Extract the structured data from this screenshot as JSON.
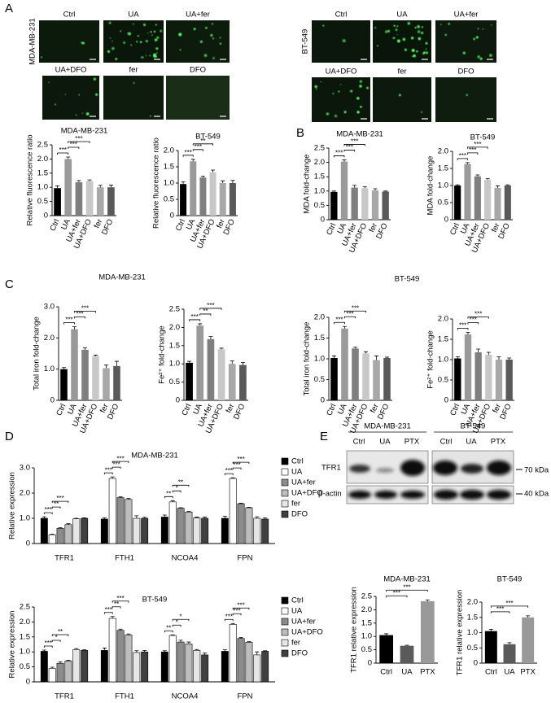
{
  "panel_labels": [
    "A",
    "B",
    "C",
    "D",
    "E"
  ],
  "micrographs": [
    {
      "cell_line": "MDA-MB-231",
      "labels": [
        "Ctrl",
        "UA",
        "UA+fer",
        "UA+DFO",
        "fer",
        "DFO"
      ]
    },
    {
      "cell_line": "BT-549",
      "labels": [
        "Ctrl",
        "UA",
        "UA+fer",
        "UA+DFO",
        "fer",
        "DFO"
      ]
    }
  ],
  "blot": {
    "cell_lines": [
      "MDA-MB-231",
      "BT-549"
    ],
    "lanes": [
      "Ctrl",
      "UA",
      "PTX",
      "Ctrl",
      "UA",
      "PTX"
    ],
    "proteins": [
      "TFR1",
      "β-actin"
    ],
    "markers": [
      "70 kDa",
      "40 kDa"
    ]
  },
  "chart_data": [
    {
      "type": "bar",
      "title": "MDA-MB-231",
      "y_label": "Relative fluorescence ratio",
      "categories": [
        "Ctrl",
        "UA",
        "UA+fer",
        "UA+DFO",
        "fer",
        "DFO"
      ],
      "values": [
        0.97,
        2.0,
        1.18,
        1.22,
        1.0,
        1.0
      ],
      "errors": [
        0.08,
        0.07,
        0.06,
        0.04,
        0.07,
        0.08
      ],
      "colors": [
        "#000000",
        "#9a9a9a",
        "#7f7f7f",
        "#c8c8c8",
        "#a8a8a8",
        "#5a5a5a"
      ],
      "ylim": [
        0,
        2.5
      ],
      "yticks": [
        0,
        0.5,
        {
          "value": 1,
          "label": "1.0"
        },
        1.5,
        {
          "value": 2,
          "label": "2.0"
        },
        2.5
      ],
      "significance": [
        {
          "between": [
            0,
            1
          ],
          "label": "***"
        },
        {
          "between": [
            1,
            2
          ],
          "label": "***"
        },
        {
          "between": [
            1,
            3
          ],
          "label": "***"
        }
      ]
    },
    {
      "type": "bar",
      "title": "BT-549",
      "y_label": "Relative fluorescence ratio",
      "categories": [
        "Ctrl",
        "UA",
        "UA+fer",
        "UA+DFO",
        "fer",
        "DFO"
      ],
      "values": [
        0.97,
        1.67,
        1.17,
        1.33,
        1.0,
        1.0
      ],
      "errors": [
        0.07,
        0.06,
        0.04,
        0.07,
        0.07,
        0.08
      ],
      "colors": [
        "#000000",
        "#9a9a9a",
        "#7f7f7f",
        "#c8c8c8",
        "#a8a8a8",
        "#5a5a5a"
      ],
      "ylim": [
        0,
        2
      ],
      "yticks": [
        0,
        0.5,
        {
          "value": 1,
          "label": "1.0"
        },
        1.5,
        {
          "value": 2,
          "label": "2.0"
        }
      ],
      "significance": [
        {
          "between": [
            0,
            1
          ],
          "label": "***"
        },
        {
          "between": [
            1,
            2
          ],
          "label": "***"
        },
        {
          "between": [
            1,
            3
          ],
          "label": "**"
        }
      ]
    },
    {
      "type": "bar",
      "title": "MDA-MB-231",
      "y_label": "MDA fold-change",
      "categories": [
        "Ctrl",
        "UA",
        "UA+fer",
        "UA+DFO",
        "fer",
        "DFO"
      ],
      "values": [
        0.97,
        2.03,
        1.12,
        1.1,
        1.02,
        0.98
      ],
      "errors": [
        0.03,
        0.06,
        0.08,
        0.05,
        0.06,
        0.02
      ],
      "colors": [
        "#000000",
        "#9a9a9a",
        "#7f7f7f",
        "#c8c8c8",
        "#a8a8a8",
        "#5a5a5a"
      ],
      "ylim": [
        0,
        2.5
      ],
      "yticks": [
        0,
        0.5,
        {
          "value": 1,
          "label": "1.0"
        },
        1.5,
        {
          "value": 2,
          "label": "2.0"
        },
        2.5
      ],
      "significance": [
        {
          "between": [
            0,
            1
          ],
          "label": "***"
        },
        {
          "between": [
            1,
            2
          ],
          "label": "***"
        },
        {
          "between": [
            1,
            3
          ],
          "label": "***"
        }
      ]
    },
    {
      "type": "bar",
      "title": "BT-549",
      "y_label": "MDA fold-change",
      "categories": [
        "Ctrl",
        "UA",
        "UA+fer",
        "UA+DFO",
        "fer",
        "DFO"
      ],
      "values": [
        1.0,
        1.63,
        1.27,
        1.17,
        0.93,
        1.0
      ],
      "errors": [
        0.02,
        0.04,
        0.04,
        0.03,
        0.06,
        0.02
      ],
      "colors": [
        "#000000",
        "#9a9a9a",
        "#7f7f7f",
        "#c8c8c8",
        "#a8a8a8",
        "#5a5a5a"
      ],
      "ylim": [
        0,
        2
      ],
      "yticks": [
        0,
        0.5,
        {
          "value": 1,
          "label": "1.0"
        },
        1.5,
        {
          "value": 2,
          "label": "2.0"
        }
      ],
      "significance": [
        {
          "between": [
            0,
            1
          ],
          "label": "***"
        },
        {
          "between": [
            1,
            2
          ],
          "label": "***"
        },
        {
          "between": [
            1,
            3
          ],
          "label": "***"
        }
      ]
    },
    {
      "type": "bar",
      "title": "MDA-MB-231",
      "y_label": "Total iron fold-change",
      "categories": [
        "Ctrl",
        "UA",
        "UA+fer",
        "UA+DFO",
        "fer",
        "DFO"
      ],
      "values": [
        1.0,
        2.28,
        1.62,
        1.42,
        1.03,
        1.1
      ],
      "errors": [
        0.05,
        0.08,
        0.06,
        0.03,
        0.1,
        0.15
      ],
      "colors": [
        "#000000",
        "#9a9a9a",
        "#7f7f7f",
        "#c8c8c8",
        "#a8a8a8",
        "#5a5a5a"
      ],
      "ylim": [
        0,
        3
      ],
      "yticks": [
        0,
        {
          "value": 1,
          "label": "1.0"
        },
        {
          "value": 2,
          "label": "2.0"
        },
        {
          "value": 3,
          "label": "3.0"
        }
      ],
      "significance": [
        {
          "between": [
            0,
            1
          ],
          "label": "***"
        },
        {
          "between": [
            1,
            2
          ],
          "label": "***"
        },
        {
          "between": [
            1,
            3
          ],
          "label": "***"
        }
      ]
    },
    {
      "type": "bar",
      "y_label": "Fe²⁺ fold-change",
      "categories": [
        "Ctrl",
        "UA",
        "UA+fer",
        "UA+DFO",
        "fer",
        "DFO"
      ],
      "values": [
        1.03,
        2.05,
        1.68,
        1.4,
        1.0,
        0.97
      ],
      "errors": [
        0.04,
        0.05,
        0.07,
        0.03,
        0.08,
        0.07
      ],
      "colors": [
        "#000000",
        "#9a9a9a",
        "#7f7f7f",
        "#c8c8c8",
        "#a8a8a8",
        "#5a5a5a"
      ],
      "ylim": [
        0,
        2.5
      ],
      "yticks": [
        0,
        0.5,
        {
          "value": 1,
          "label": "1.0"
        },
        1.5,
        {
          "value": 2,
          "label": "2.0"
        },
        2.5
      ],
      "significance": [
        {
          "between": [
            0,
            1
          ],
          "label": "***"
        },
        {
          "between": [
            1,
            2
          ],
          "label": "**"
        },
        {
          "between": [
            1,
            3
          ],
          "label": "***"
        }
      ]
    },
    {
      "type": "bar",
      "title": "BT-549",
      "y_label": "Total iron fold-change",
      "categories": [
        "Ctrl",
        "UA",
        "UA+fer",
        "UA+DFO",
        "fer",
        "DFO"
      ],
      "values": [
        1.02,
        1.73,
        1.25,
        1.13,
        0.97,
        1.02
      ],
      "errors": [
        0.05,
        0.05,
        0.03,
        0.04,
        0.1,
        0.02
      ],
      "colors": [
        "#000000",
        "#9a9a9a",
        "#7f7f7f",
        "#c8c8c8",
        "#a8a8a8",
        "#5a5a5a"
      ],
      "ylim": [
        0,
        2
      ],
      "yticks": [
        0,
        0.5,
        {
          "value": 1,
          "label": "1.0"
        },
        1.5,
        {
          "value": 2,
          "label": "2.0"
        }
      ],
      "significance": [
        {
          "between": [
            0,
            1
          ],
          "label": "***"
        },
        {
          "between": [
            1,
            2
          ],
          "label": "***"
        },
        {
          "between": [
            1,
            3
          ],
          "label": "***"
        }
      ]
    },
    {
      "type": "bar",
      "y_label": "Fe²⁺ fold-change",
      "categories": [
        "Ctrl",
        "UA",
        "UA+fer",
        "UA+DFO",
        "fer",
        "DFO"
      ],
      "values": [
        1.03,
        1.62,
        1.18,
        1.12,
        1.0,
        1.0
      ],
      "errors": [
        0.04,
        0.05,
        0.08,
        0.06,
        0.07,
        0.04
      ],
      "colors": [
        "#000000",
        "#9a9a9a",
        "#7f7f7f",
        "#c8c8c8",
        "#a8a8a8",
        "#5a5a5a"
      ],
      "ylim": [
        0,
        2
      ],
      "yticks": [
        0,
        0.5,
        {
          "value": 1,
          "label": "1.0"
        },
        1.5,
        {
          "value": 2,
          "label": "2.0"
        }
      ],
      "significance": [
        {
          "between": [
            0,
            1
          ],
          "label": "***"
        },
        {
          "between": [
            1,
            2
          ],
          "label": "***"
        },
        {
          "between": [
            1,
            3
          ],
          "label": "***"
        }
      ]
    },
    {
      "type": "grouped_bar",
      "title": "MDA-MB-231",
      "y_label": "Relative expression",
      "categories": [
        "TFR1",
        "FTH1",
        "NCOA4",
        "FPN"
      ],
      "ylim": [
        0,
        3
      ],
      "yticks": [
        0,
        {
          "value": 1,
          "label": "1.0"
        },
        {
          "value": 2,
          "label": "2.0"
        },
        {
          "value": 3,
          "label": "3.0"
        }
      ],
      "series": [
        {
          "name": "Ctrl",
          "color": "#000000",
          "values": [
            1.0,
            0.97,
            1.05,
            1.0
          ],
          "errors": [
            0.06,
            0.05,
            0.08,
            0.08
          ]
        },
        {
          "name": "UA",
          "color": "#ffffff",
          "values": [
            0.35,
            2.58,
            1.65,
            2.58
          ],
          "errors": [
            0.02,
            0.06,
            0.05,
            0.03
          ]
        },
        {
          "name": "UA+fer",
          "color": "#8c8c8c",
          "values": [
            0.6,
            1.82,
            1.4,
            1.58
          ],
          "errors": [
            0.03,
            0.03,
            0.02,
            0.02
          ]
        },
        {
          "name": "UA+DFO",
          "color": "#bdbdbd",
          "values": [
            0.75,
            1.75,
            1.25,
            1.42
          ],
          "errors": [
            0.04,
            0.04,
            0.02,
            0.02
          ]
        },
        {
          "name": "fer",
          "color": "#e6e6e6",
          "values": [
            0.98,
            1.0,
            1.02,
            1.0
          ],
          "errors": [
            0.02,
            0.1,
            0.03,
            0.06
          ]
        },
        {
          "name": "DFO",
          "color": "#404040",
          "values": [
            1.0,
            1.0,
            1.0,
            0.97
          ],
          "errors": [
            0.02,
            0.04,
            0.05,
            0.05
          ]
        }
      ],
      "significance": [
        {
          "category": 0,
          "between": [
            0,
            1
          ],
          "label": "***"
        },
        {
          "category": 0,
          "between": [
            1,
            2
          ],
          "label": "**"
        },
        {
          "category": 0,
          "between": [
            1,
            3
          ],
          "label": "***"
        },
        {
          "category": 1,
          "between": [
            0,
            1
          ],
          "label": "***"
        },
        {
          "category": 1,
          "between": [
            1,
            2
          ],
          "label": "***"
        },
        {
          "category": 1,
          "between": [
            1,
            3
          ],
          "label": "***"
        },
        {
          "category": 2,
          "between": [
            0,
            1
          ],
          "label": "**"
        },
        {
          "category": 2,
          "between": [
            1,
            2
          ],
          "label": "*"
        },
        {
          "category": 2,
          "between": [
            1,
            3
          ],
          "label": "**"
        },
        {
          "category": 3,
          "between": [
            0,
            1
          ],
          "label": "***"
        },
        {
          "category": 3,
          "between": [
            1,
            2
          ],
          "label": "***"
        },
        {
          "category": 3,
          "between": [
            1,
            3
          ],
          "label": "***"
        }
      ]
    },
    {
      "type": "grouped_bar",
      "title": "BT-549",
      "y_label": "Relative expression",
      "categories": [
        "TFR1",
        "FTH1",
        "NCOA4",
        "FPN"
      ],
      "ylim": [
        0,
        2.5
      ],
      "yticks": [
        0,
        0.5,
        {
          "value": 1,
          "label": "1.0"
        },
        1.5,
        {
          "value": 2,
          "label": "2.0"
        },
        2.5
      ],
      "series": [
        {
          "name": "Ctrl",
          "color": "#000000",
          "values": [
            1.02,
            1.05,
            1.0,
            1.02
          ],
          "errors": [
            0.04,
            0.08,
            0.04,
            0.05
          ]
        },
        {
          "name": "UA",
          "color": "#ffffff",
          "values": [
            0.45,
            2.12,
            1.55,
            1.92
          ],
          "errors": [
            0.04,
            0.06,
            0.02,
            0.03
          ]
        },
        {
          "name": "UA+fer",
          "color": "#8c8c8c",
          "values": [
            0.62,
            1.72,
            1.33,
            1.45
          ],
          "errors": [
            0.05,
            0.04,
            0.06,
            0.03
          ]
        },
        {
          "name": "UA+DFO",
          "color": "#bdbdbd",
          "values": [
            0.7,
            1.57,
            1.27,
            1.32
          ],
          "errors": [
            0.02,
            0.03,
            0.06,
            0.02
          ]
        },
        {
          "name": "fer",
          "color": "#e6e6e6",
          "values": [
            1.08,
            0.98,
            1.05,
            0.9
          ],
          "errors": [
            0.03,
            0.06,
            0.03,
            0.1
          ]
        },
        {
          "name": "DFO",
          "color": "#404040",
          "values": [
            1.05,
            1.0,
            0.9,
            1.02
          ],
          "errors": [
            0.02,
            0.05,
            0.06,
            0.02
          ]
        }
      ],
      "significance": [
        {
          "category": 0,
          "between": [
            0,
            1
          ],
          "label": "***"
        },
        {
          "category": 0,
          "between": [
            1,
            2
          ],
          "label": "*"
        },
        {
          "category": 0,
          "between": [
            1,
            3
          ],
          "label": "**"
        },
        {
          "category": 1,
          "between": [
            0,
            1
          ],
          "label": "***"
        },
        {
          "category": 1,
          "between": [
            1,
            2
          ],
          "label": "**"
        },
        {
          "category": 1,
          "between": [
            1,
            3
          ],
          "label": "***"
        },
        {
          "category": 2,
          "between": [
            0,
            1
          ],
          "label": "**"
        },
        {
          "category": 2,
          "between": [
            1,
            2
          ],
          "label": "*"
        },
        {
          "category": 2,
          "between": [
            1,
            3
          ],
          "label": "*"
        },
        {
          "category": 3,
          "between": [
            0,
            1
          ],
          "label": "***"
        },
        {
          "category": 3,
          "between": [
            1,
            2
          ],
          "label": "***"
        },
        {
          "category": 3,
          "between": [
            1,
            3
          ],
          "label": "***"
        }
      ]
    },
    {
      "type": "bar",
      "title": "MDA-MB-231",
      "y_label": "TFR1 relative expression",
      "categories": [
        "Ctrl",
        "UA",
        "PTX"
      ],
      "values": [
        1.05,
        0.65,
        2.32
      ],
      "errors": [
        0.05,
        0.02,
        0.05
      ],
      "colors": [
        "#000000",
        "#5a5a5a",
        "#999999"
      ],
      "ylim": [
        0,
        2.5
      ],
      "yticks": [
        0,
        0.5,
        {
          "value": 1,
          "label": "1.0"
        },
        1.5,
        {
          "value": 2,
          "label": "2.0"
        },
        2.5
      ],
      "significance": [
        {
          "between": [
            0,
            1
          ],
          "label": "***"
        },
        {
          "between": [
            0,
            2
          ],
          "label": "***"
        }
      ]
    },
    {
      "type": "bar",
      "title": "BT-549",
      "y_label": "TFR1 relative expression",
      "categories": [
        "Ctrl",
        "UA",
        "PTX"
      ],
      "values": [
        1.05,
        0.62,
        1.5
      ],
      "errors": [
        0.06,
        0.05,
        0.05
      ],
      "colors": [
        "#000000",
        "#5a5a5a",
        "#999999"
      ],
      "ylim": [
        0,
        2
      ],
      "yticks": [
        0,
        0.5,
        {
          "value": 1,
          "label": "1.0"
        },
        1.5,
        {
          "value": 2,
          "label": "2.0"
        }
      ],
      "significance": [
        {
          "between": [
            0,
            1
          ],
          "label": "***"
        },
        {
          "between": [
            0,
            2
          ],
          "label": "***"
        }
      ]
    }
  ]
}
